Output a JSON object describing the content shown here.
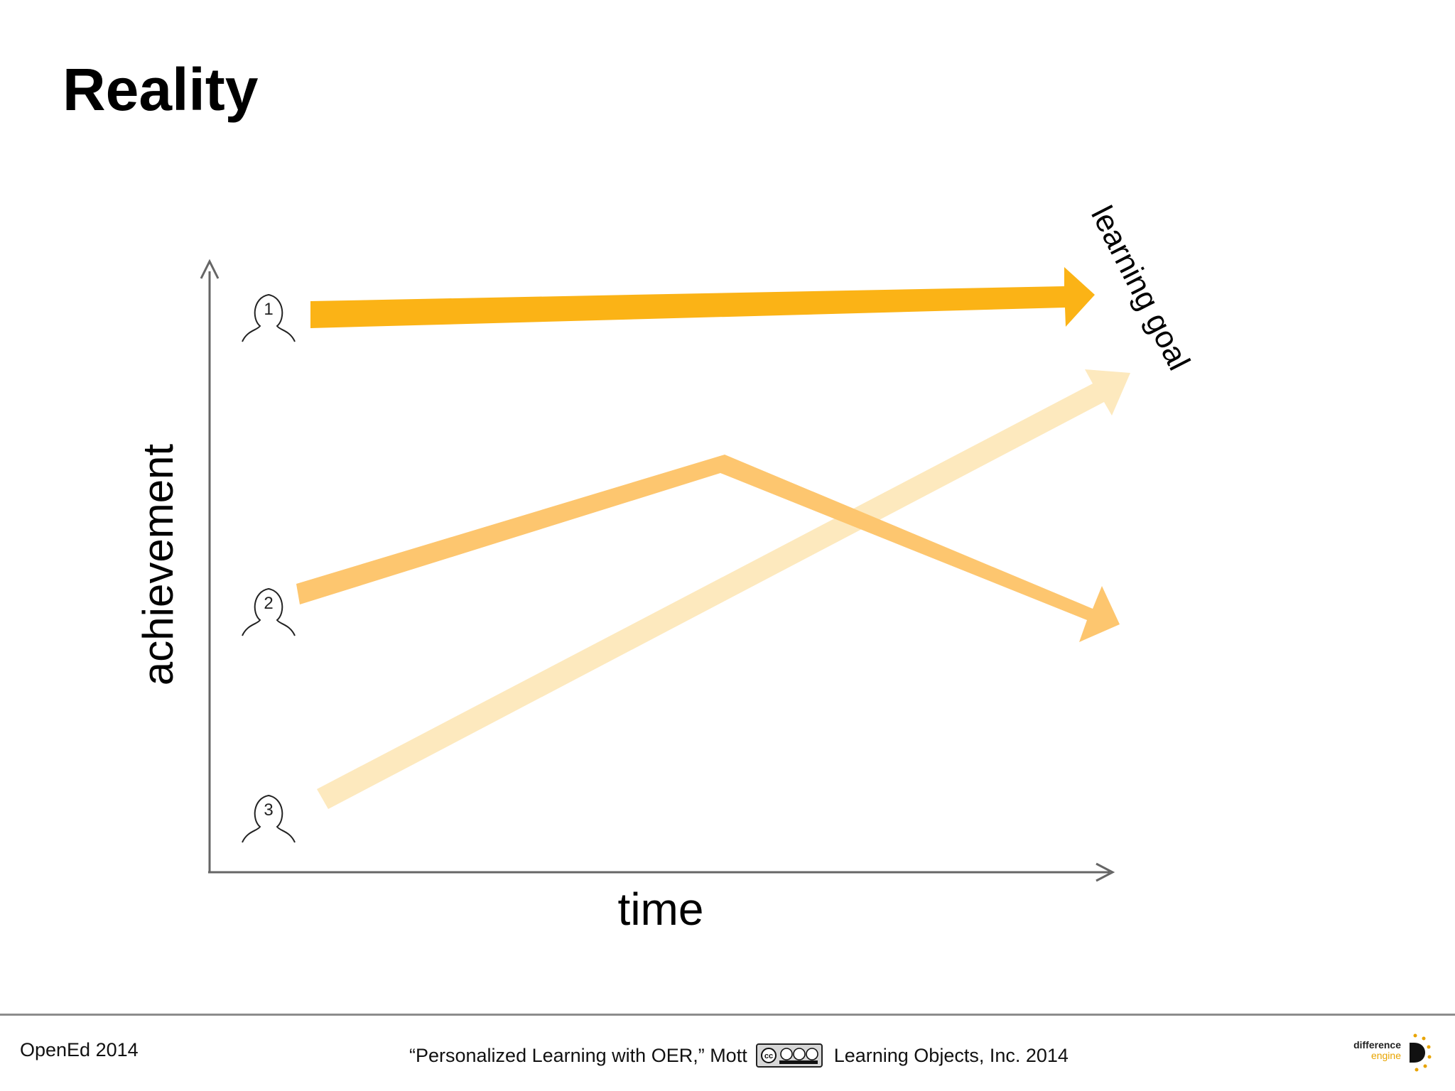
{
  "slide": {
    "title": "Reality"
  },
  "diagram": {
    "y_axis_label": "achievement",
    "x_axis_label": "time",
    "goal_label": "learning goal",
    "colors": {
      "learner_1": "#fbb316",
      "learner_2": "#fdc66f",
      "learner_3": "#fde9be",
      "axis": "#666666"
    },
    "learners": [
      {
        "number": "1",
        "icon": "person-icon"
      },
      {
        "number": "2",
        "icon": "person-icon"
      },
      {
        "number": "3",
        "icon": "person-icon"
      }
    ]
  },
  "footer": {
    "left": "OpenEd 2014",
    "citation": "“Personalized Learning with OER,” Mott",
    "license_icon": "cc-by-nc-nd-icon",
    "copyright": "Learning Objects, Inc. 2014",
    "logo_text_1": "difference",
    "logo_text_2": "engine"
  }
}
